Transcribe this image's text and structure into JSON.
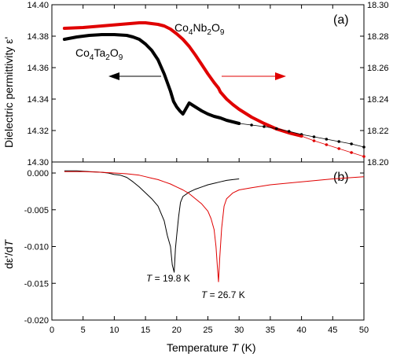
{
  "chart_data": [
    {
      "panel": "(a)",
      "type": "line",
      "xlabel": "Temperature T (K)",
      "ylabel": "Dielectric permittivity ε'",
      "xlim": [
        0,
        50
      ],
      "ylim_left": [
        14.3,
        14.4
      ],
      "ylim_right": [
        18.2,
        18.3
      ],
      "yticks_left": [
        "14.30",
        "14.32",
        "14.34",
        "14.36",
        "14.38",
        "14.40"
      ],
      "yticks_right": [
        "18.20",
        "18.22",
        "18.24",
        "18.26",
        "18.28",
        "18.30"
      ],
      "grid": false,
      "series": [
        {
          "name": "Co4Ta2O9",
          "axis": "left",
          "color": "#000000",
          "x": [
            2,
            4,
            6,
            8,
            10,
            12,
            13,
            14,
            15,
            16,
            17,
            18,
            19,
            19.5,
            20,
            20.5,
            21,
            22,
            23,
            24,
            25,
            26,
            27,
            28,
            29,
            30
          ],
          "y": [
            14.378,
            14.3795,
            14.3805,
            14.381,
            14.381,
            14.3805,
            14.3795,
            14.378,
            14.375,
            14.371,
            14.365,
            14.356,
            14.345,
            14.3385,
            14.335,
            14.3325,
            14.3305,
            14.3375,
            14.335,
            14.3325,
            14.3305,
            14.329,
            14.328,
            14.3265,
            14.3255,
            14.3245
          ]
        },
        {
          "name": "Co4Nb2O9",
          "axis": "right",
          "color": "#e00000",
          "x": [
            2,
            5,
            8,
            11,
            14,
            15,
            16,
            17,
            18,
            19,
            20,
            21,
            22,
            23,
            24,
            25,
            26,
            26.7,
            27,
            28,
            29,
            30,
            32,
            34,
            36,
            38,
            40
          ],
          "y": [
            18.285,
            18.2855,
            18.2865,
            18.2875,
            18.2885,
            18.2885,
            18.288,
            18.2875,
            18.2865,
            18.2845,
            18.2815,
            18.278,
            18.2735,
            18.268,
            18.262,
            18.256,
            18.2505,
            18.247,
            18.2445,
            18.24,
            18.2365,
            18.2335,
            18.2285,
            18.2245,
            18.221,
            18.2185,
            18.2165
          ]
        },
        {
          "name": "",
          "axis": "left",
          "color": "#000000",
          "style": "thin line with markers",
          "x": [
            30,
            32,
            34,
            36,
            38,
            40,
            42,
            44,
            46,
            48,
            50
          ],
          "y": [
            14.3245,
            14.3235,
            14.3225,
            14.3212,
            14.3195,
            14.3175,
            14.316,
            14.3145,
            14.313,
            14.3115,
            14.3095
          ]
        },
        {
          "name": "",
          "axis": "right",
          "color": "#e00000",
          "style": "thin line with markers",
          "x": [
            40,
            42,
            44,
            46,
            48,
            50
          ],
          "y": [
            18.2165,
            18.2135,
            18.211,
            18.2085,
            18.206,
            18.2035
          ]
        }
      ],
      "annotations": [
        "arrow pointing left (Co4Ta2O9, left axis)",
        "arrow pointing right (Co4Nb2O9, right axis)"
      ]
    },
    {
      "panel": "(b)",
      "type": "line",
      "xlabel": "Temperature T (K)",
      "ylabel": "dε'/dT",
      "xlim": [
        0,
        50
      ],
      "ylim": [
        -0.02,
        0.0015
      ],
      "yticks": [
        "0.000",
        "-0.005",
        "-0.010",
        "-0.015",
        "-0.020"
      ],
      "xticks": [
        "0",
        "5",
        "10",
        "15",
        "20",
        "25",
        "30",
        "35",
        "40",
        "45",
        "50"
      ],
      "grid": false,
      "series": [
        {
          "name": "Co4Ta2O9",
          "color": "#000000",
          "x": [
            2,
            4,
            6,
            8,
            9,
            10,
            11,
            12,
            13,
            14,
            15,
            16,
            17,
            18,
            18.5,
            19,
            19.3,
            19.6,
            19.8,
            20.0,
            20.3,
            20.6,
            21,
            22,
            23,
            24,
            25,
            26,
            27,
            28,
            29,
            30
          ],
          "y": [
            0.0003,
            0.0003,
            0.0002,
            0.0001,
            0.0,
            -0.0002,
            -0.0003,
            -0.0006,
            -0.0012,
            -0.0019,
            -0.0027,
            -0.0035,
            -0.0045,
            -0.0065,
            -0.0085,
            -0.01,
            -0.0125,
            -0.0135,
            -0.0103,
            -0.0085,
            -0.006,
            -0.004,
            -0.0032,
            -0.0026,
            -0.0022,
            -0.0019,
            -0.0016,
            -0.0014,
            -0.0012,
            -0.001,
            -0.0009,
            -0.0008
          ]
        },
        {
          "name": "Co4Nb2O9",
          "color": "#e00000",
          "x": [
            2,
            5,
            8,
            10,
            12,
            14,
            15,
            16,
            17,
            18,
            19,
            20,
            21,
            22,
            23,
            24,
            25,
            25.5,
            26,
            26.3,
            26.5,
            26.7,
            26.9,
            27.2,
            27.6,
            28,
            29,
            30,
            32,
            35,
            40,
            45,
            50
          ],
          "y": [
            0.0002,
            0.0002,
            0.0001,
            0.0,
            -0.0001,
            -0.0003,
            -0.0005,
            -0.0007,
            -0.0009,
            -0.0012,
            -0.0015,
            -0.0019,
            -0.0023,
            -0.0028,
            -0.0035,
            -0.0042,
            -0.0052,
            -0.0062,
            -0.0077,
            -0.01,
            -0.0125,
            -0.0148,
            -0.0115,
            -0.0075,
            -0.0045,
            -0.0035,
            -0.0027,
            -0.0023,
            -0.002,
            -0.0016,
            -0.0012,
            -0.0008,
            -0.0005
          ]
        }
      ],
      "annotations": [
        {
          "text": "T = 19.8 K"
        },
        {
          "text": "T = 26.7 K"
        }
      ]
    }
  ]
}
